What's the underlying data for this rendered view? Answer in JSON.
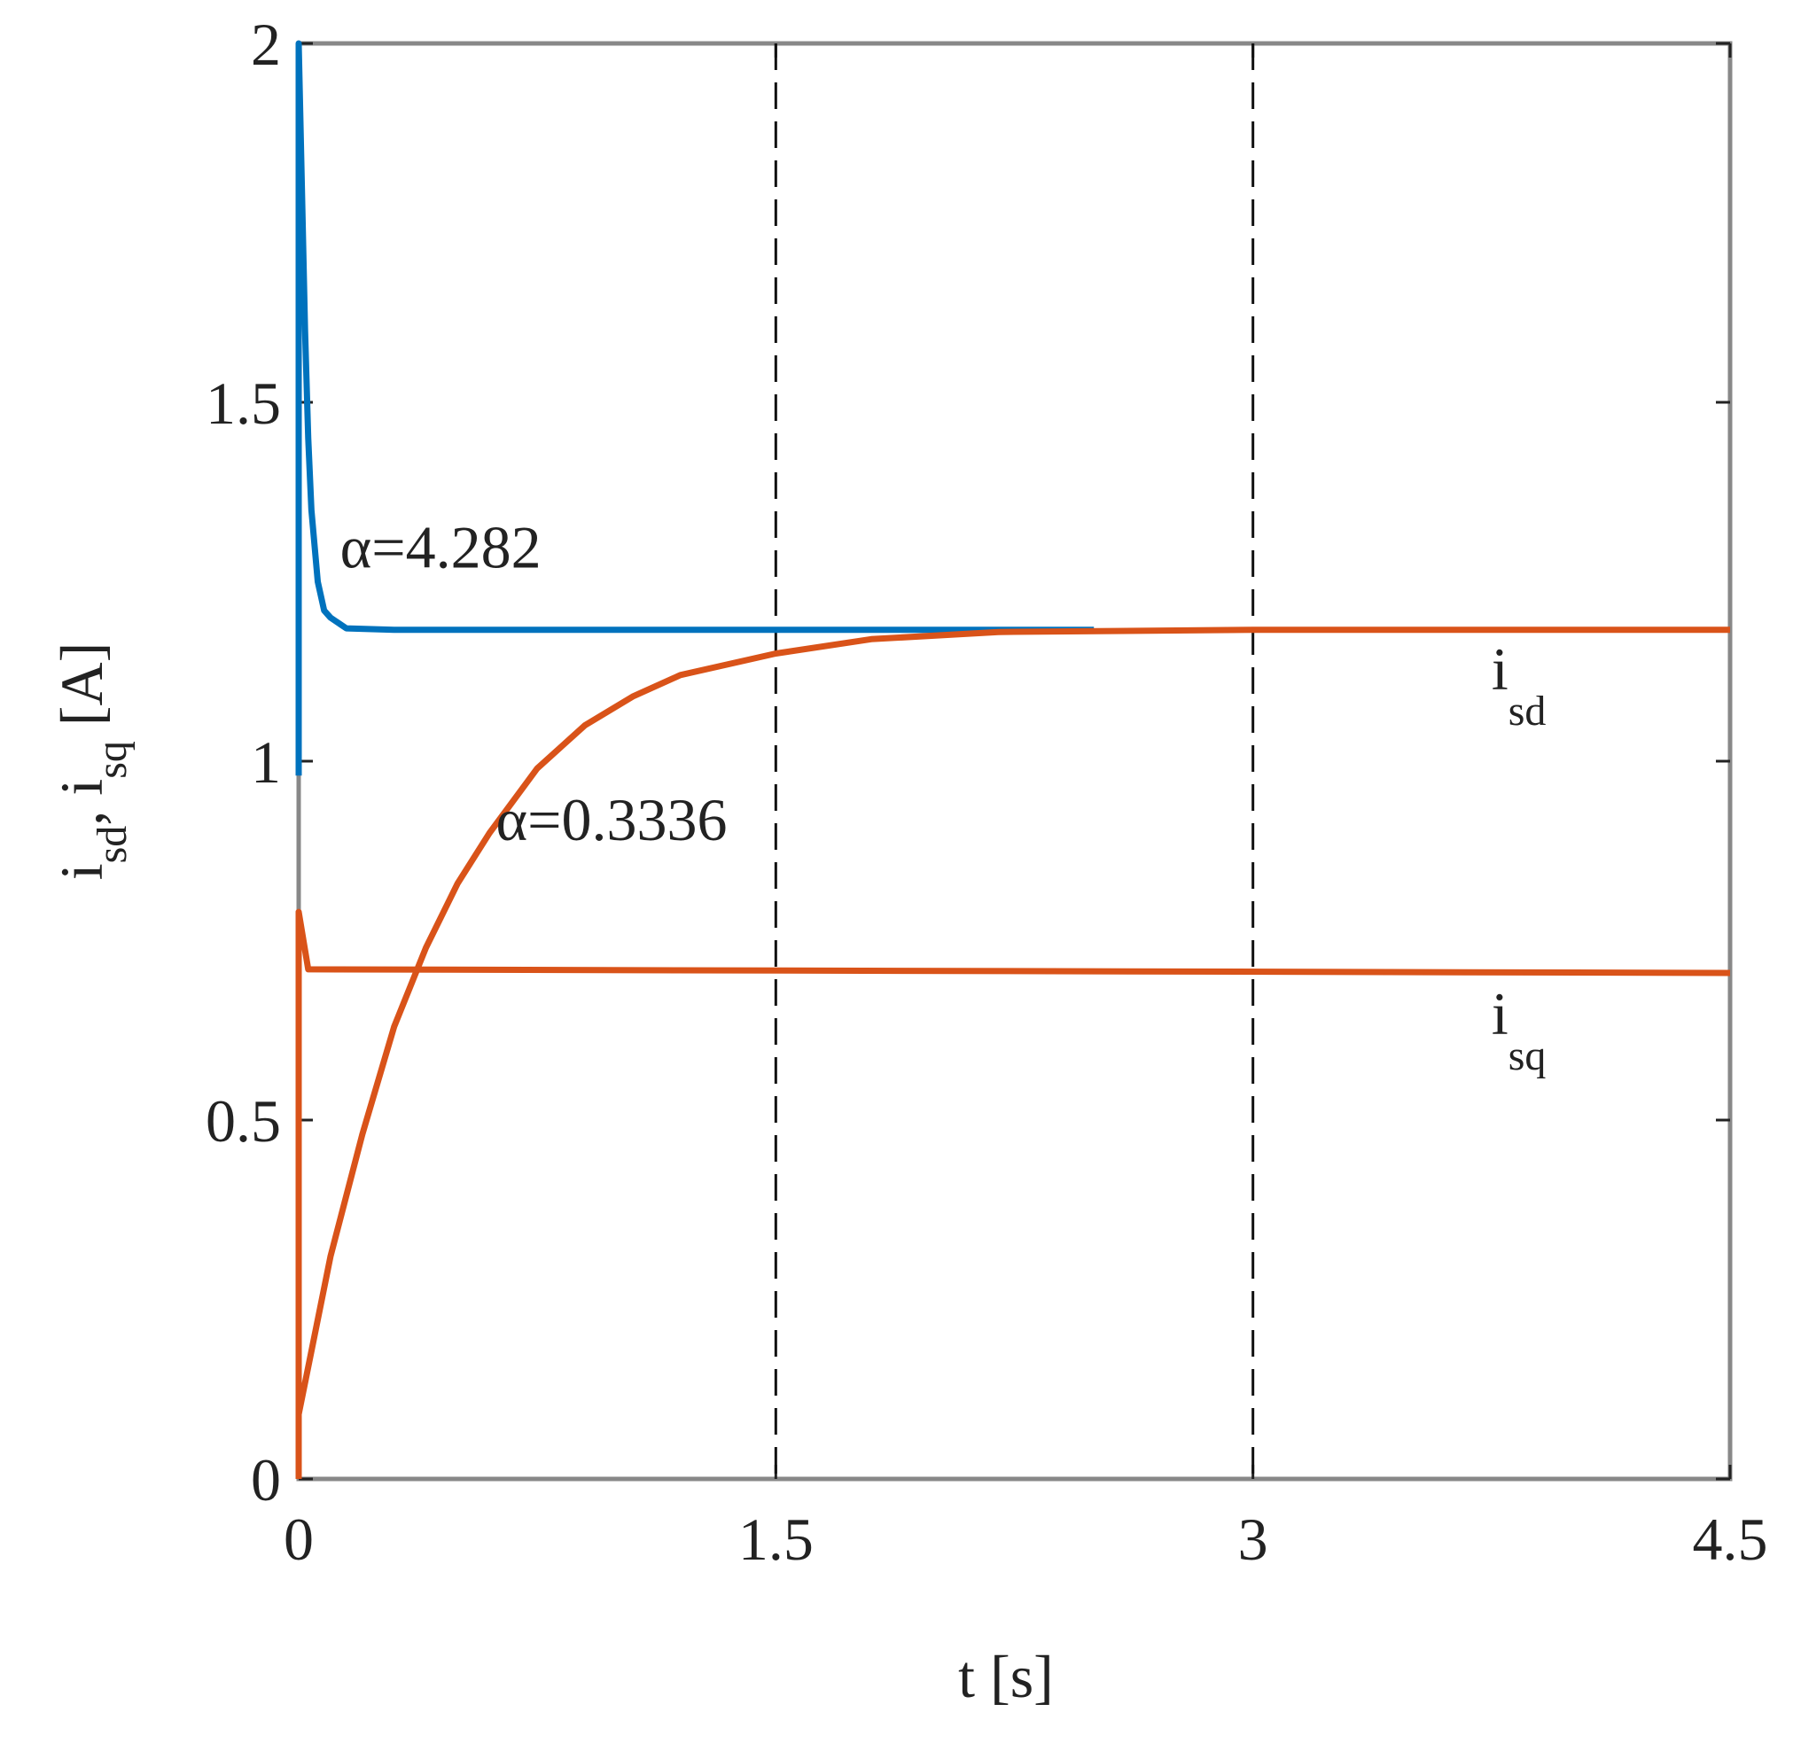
{
  "chart_data": {
    "type": "line",
    "xlabel": "t [s]",
    "ylabel": [
      {
        "text": "i"
      },
      {
        "text": "sd",
        "sub": true
      },
      {
        "text": ", i"
      },
      {
        "text": "sq",
        "sub": true
      },
      {
        "text": " [A]"
      }
    ],
    "xlim": [
      0,
      4.5
    ],
    "xticks": [
      0,
      1.5,
      3,
      4.5
    ],
    "ylim": [
      0,
      2
    ],
    "yticks": [
      0,
      0.5,
      1,
      1.5,
      2
    ],
    "vlines": [
      1.5,
      3
    ],
    "series": [
      {
        "color": "#0072BD",
        "x": [
          0,
          0,
          0.01,
          0.02,
          0.03,
          0.04,
          0.06,
          0.08,
          0.1,
          0.15,
          0.3,
          1,
          2,
          2.5
        ],
        "values": [
          0.98,
          2,
          1.8,
          1.6,
          1.45,
          1.35,
          1.25,
          1.21,
          1.2,
          1.185,
          1.183,
          1.183,
          1.183,
          1.183
        ]
      },
      {
        "color": "#D95319",
        "x": [
          0,
          0.1,
          0.2,
          0.3,
          0.4,
          0.5,
          0.6,
          0.75,
          0.9,
          1.05,
          1.2,
          1.5,
          1.8,
          2.2,
          3,
          4.5
        ],
        "values": [
          0.09,
          0.31,
          0.48,
          0.63,
          0.74,
          0.83,
          0.9,
          0.99,
          1.05,
          1.09,
          1.12,
          1.15,
          1.17,
          1.18,
          1.183,
          1.183
        ]
      },
      {
        "color": "#D95319",
        "x": [
          0,
          0,
          0.03,
          4.5
        ],
        "values": [
          0,
          0.79,
          0.71,
          0.705
        ]
      }
    ],
    "annotations": [
      {
        "text": "α=4.282",
        "x": 0.13,
        "y": 1.27
      },
      {
        "text": "α=0.3336",
        "x": 0.62,
        "y": 0.89
      },
      {
        "text": "i",
        "sub": "sd",
        "x": 3.75,
        "y": 1.1
      },
      {
        "text": "i",
        "sub": "sq",
        "x": 3.75,
        "y": 0.62
      }
    ]
  }
}
